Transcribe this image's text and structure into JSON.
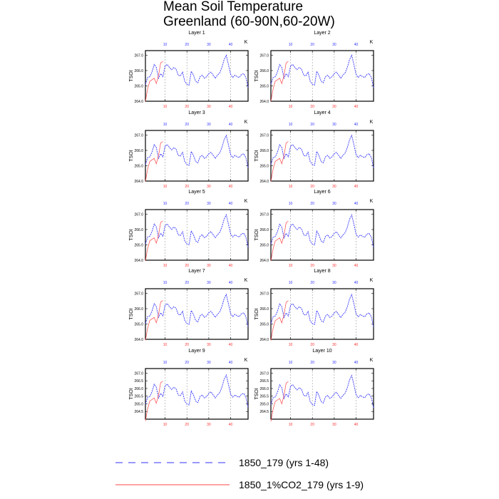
{
  "figure": {
    "title_line1": "Mean Soil Temperature",
    "title_line2": "Greenland (60-90N,60-20W)"
  },
  "colors": {
    "series1": "#3333ff",
    "series2": "#ff4444",
    "grid": "#999999",
    "top_axis": "#3333ff",
    "bottom_axis": "#ff3333"
  },
  "chart_data": {
    "type": "line",
    "ylabel": "TSOI",
    "unit_label": "K",
    "top_axis": {
      "range": [
        1,
        48
      ],
      "ticks": [
        "10",
        "20",
        "30",
        "40"
      ]
    },
    "bottom_axis": {
      "range": [
        1,
        48
      ],
      "ticks": [
        "10",
        "20",
        "30",
        "40"
      ]
    },
    "grid": "vertical dashed lines at year 10, 20, 30, 40",
    "series": [
      {
        "name": "1850_179 (yrs 1-48)",
        "style": "dashed",
        "years": [
          1,
          48
        ],
        "values": [
          265.1,
          265.55,
          265.6,
          265.9,
          266.4,
          266.2,
          265.5,
          265.8,
          265.6,
          266.3,
          266.4,
          266.2,
          266.05,
          266.2,
          266.1,
          265.7,
          265.65,
          265.9,
          265.3,
          265.1,
          265.05,
          265.95,
          265.7,
          265.3,
          265.2,
          265.6,
          265.7,
          265.5,
          265.6,
          265.8,
          265.9,
          265.7,
          265.5,
          265.7,
          265.85,
          266.2,
          266.7,
          267.0,
          266.4,
          265.75,
          265.55,
          265.7,
          265.6,
          265.55,
          265.75,
          265.8,
          265.55,
          264.9
        ]
      },
      {
        "name": "1850_1%CO2_179 (yrs 1-9)",
        "style": "solid",
        "years": [
          1,
          9
        ],
        "values": [
          264.0,
          264.8,
          265.3,
          265.4,
          265.5,
          265.15,
          265.7,
          266.5,
          266.6
        ]
      }
    ],
    "panels": [
      {
        "title": "Layer 1",
        "ylim": [
          264.0,
          267.3
        ],
        "yticks": [
          "264.0",
          "265.0",
          "266.0",
          "267.0"
        ],
        "offset": 0.0
      },
      {
        "title": "Layer 2",
        "ylim": [
          264.0,
          267.3
        ],
        "yticks": [
          "264.0",
          "265.0",
          "266.0",
          "267.0"
        ],
        "offset": 0.0
      },
      {
        "title": "Layer 3",
        "ylim": [
          264.0,
          267.3
        ],
        "yticks": [
          "264.0",
          "265.0",
          "266.0",
          "267.0"
        ],
        "offset": -0.02
      },
      {
        "title": "Layer 4",
        "ylim": [
          264.0,
          267.3
        ],
        "yticks": [
          "264.0",
          "265.0",
          "266.0",
          "267.0"
        ],
        "offset": -0.02
      },
      {
        "title": "Layer 5",
        "ylim": [
          264.0,
          267.3
        ],
        "yticks": [
          "264.0",
          "265.0",
          "266.0",
          "267.0"
        ],
        "offset": -0.04
      },
      {
        "title": "Layer 6",
        "ylim": [
          264.0,
          267.3
        ],
        "yticks": [
          "264.0",
          "265.0",
          "266.0",
          "267.0"
        ],
        "offset": -0.05
      },
      {
        "title": "Layer 7",
        "ylim": [
          264.0,
          267.3
        ],
        "yticks": [
          "264.0",
          "265.0",
          "266.0",
          "267.0"
        ],
        "offset": -0.07
      },
      {
        "title": "Layer 8",
        "ylim": [
          264.0,
          267.3
        ],
        "yticks": [
          "264.0",
          "265.0",
          "266.0",
          "267.0"
        ],
        "offset": -0.08
      },
      {
        "title": "Layer 9",
        "ylim": [
          264.0,
          267.3
        ],
        "yticks": [
          "264.5",
          "265.0",
          "265.5",
          "266.0",
          "266.5",
          "267.0"
        ],
        "offset": -0.12
      },
      {
        "title": "Layer 10",
        "ylim": [
          264.0,
          267.3
        ],
        "yticks": [
          "264.5",
          "265.0",
          "265.5",
          "266.0",
          "266.5",
          "267.0"
        ],
        "offset": -0.15
      }
    ],
    "legend": [
      {
        "label": "1850_179 (yrs 1-48)",
        "style": "dashed"
      },
      {
        "label": "1850_1%CO2_179 (yrs 1-9)",
        "style": "solid"
      }
    ]
  }
}
